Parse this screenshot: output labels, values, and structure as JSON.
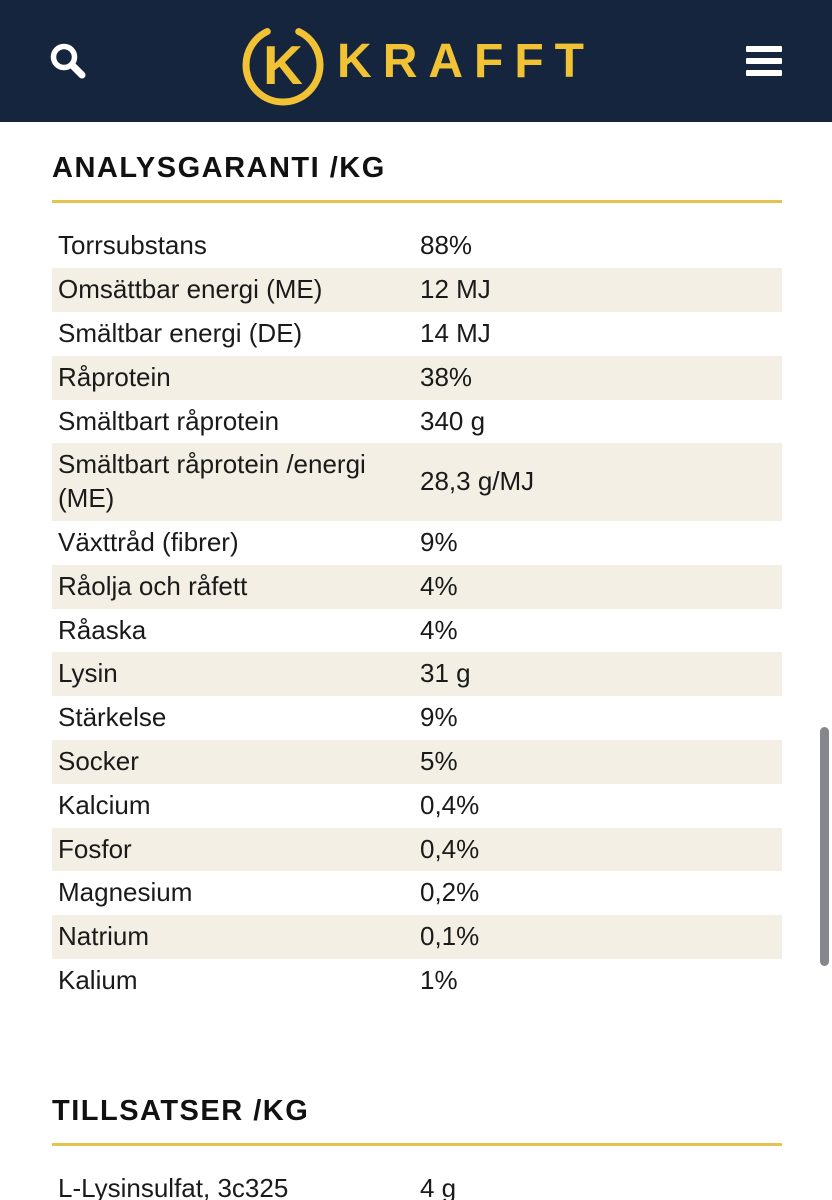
{
  "header": {
    "brand": "KRAFFT",
    "logo_letter": "K"
  },
  "colors": {
    "header_bg": "#16253E",
    "brand_gold": "#F1C233",
    "divider_gold": "#E5C44E",
    "row_alt_bg": "#F4EFE4",
    "scrollbar": "#85878A"
  },
  "sections": [
    {
      "title": "ANALYSGARANTI /KG",
      "rows": [
        {
          "label": "Torrsubstans",
          "value": "88%"
        },
        {
          "label": "Omsättbar energi (ME)",
          "value": "12 MJ"
        },
        {
          "label": "Smältbar energi (DE)",
          "value": "14 MJ"
        },
        {
          "label": "Råprotein",
          "value": "38%"
        },
        {
          "label": "Smältbart råprotein",
          "value": "340 g"
        },
        {
          "label": "Smältbart råprotein /energi (ME)",
          "value": "28,3 g/MJ"
        },
        {
          "label": "Växttråd (fibrer)",
          "value": "9%"
        },
        {
          "label": "Råolja och råfett",
          "value": "4%"
        },
        {
          "label": "Råaska",
          "value": "4%"
        },
        {
          "label": "Lysin",
          "value": "31 g"
        },
        {
          "label": "Stärkelse",
          "value": "9%"
        },
        {
          "label": "Socker",
          "value": "5%"
        },
        {
          "label": "Kalcium",
          "value": "0,4%"
        },
        {
          "label": "Fosfor",
          "value": "0,4%"
        },
        {
          "label": "Magnesium",
          "value": "0,2%"
        },
        {
          "label": "Natrium",
          "value": "0,1%"
        },
        {
          "label": "Kalium",
          "value": "1%"
        }
      ]
    },
    {
      "title": "TILLSATSER /KG",
      "rows": [
        {
          "label": "L-Lysinsulfat, 3c325",
          "value": "4 g"
        }
      ]
    }
  ]
}
